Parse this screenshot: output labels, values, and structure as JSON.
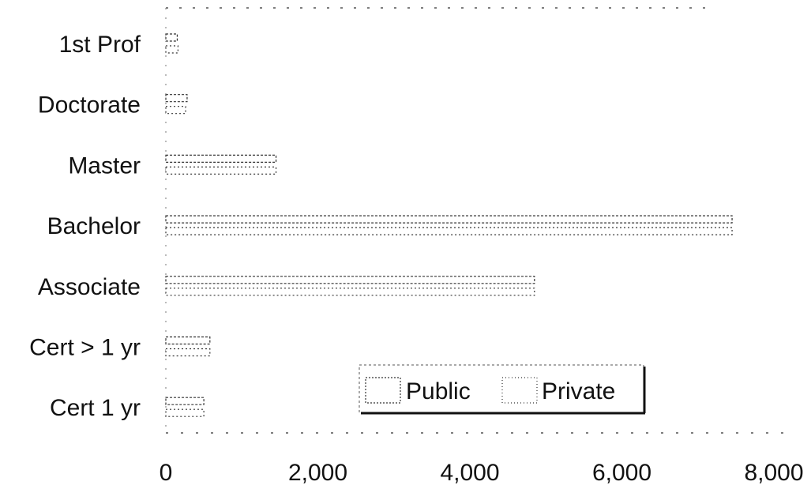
{
  "chart_data": {
    "type": "bar",
    "orientation": "horizontal",
    "categories": [
      "1st Prof",
      "Doctorate",
      "Master",
      "Bachelor",
      "Associate",
      "Cert > 1 yr",
      "Cert 1 yr"
    ],
    "series": [
      {
        "name": "Public",
        "values": [
          150,
          280,
          1450,
          7450,
          4850,
          580,
          500
        ]
      },
      {
        "name": "Private",
        "values": [
          160,
          260,
          1450,
          7450,
          4850,
          580,
          500
        ]
      }
    ],
    "xlim": [
      0,
      8000
    ],
    "xticks": [
      {
        "value": 0,
        "label": "0"
      },
      {
        "value": 2000,
        "label": "2,000"
      },
      {
        "value": 4000,
        "label": "4,000"
      },
      {
        "value": 6000,
        "label": "6,000"
      },
      {
        "value": 8000,
        "label": "8,000"
      }
    ],
    "title": "",
    "xlabel": "",
    "ylabel": "",
    "legend": {
      "placement": "bottom-right",
      "entries": [
        "Public",
        "Private"
      ]
    },
    "grid": false,
    "colors": {
      "bar_stroke": "#333333",
      "bar_fill": "#ffffff",
      "text": "#111111"
    }
  }
}
